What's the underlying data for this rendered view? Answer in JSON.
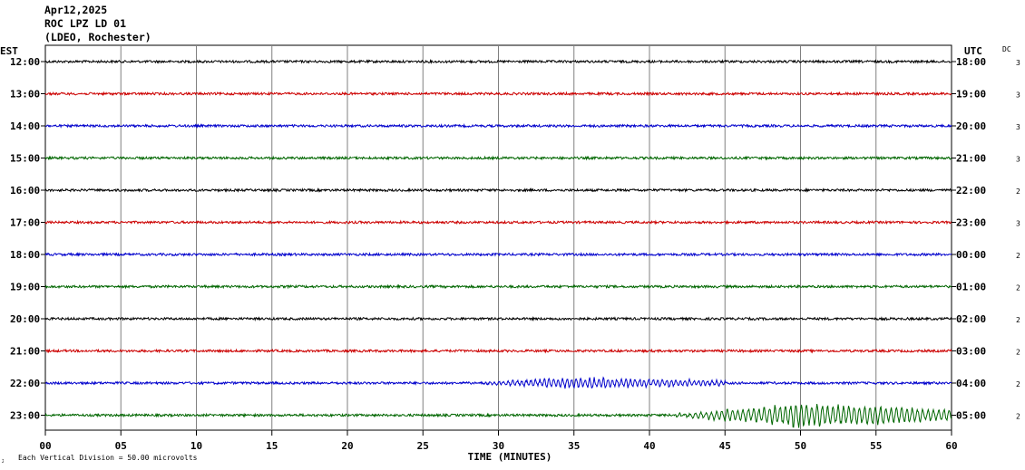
{
  "header": {
    "date": "Apr12,2025",
    "station": "ROC LPZ LD 01",
    "network": "(LDEO, Rochester)"
  },
  "labels": {
    "left_timezone": "EST",
    "right_timezone": "UTC",
    "dc_header": "DC",
    "xlabel": "TIME (MINUTES)",
    "footnote": "Each Vertical Division =   50.00 microvolts",
    "corner_mark": "ג"
  },
  "colors": {
    "grid": "#808080",
    "traces": [
      "#000000",
      "#cc0000",
      "#0000cc",
      "#006600"
    ]
  },
  "chart_data": {
    "type": "line",
    "subtype": "helicorder",
    "x_ticks": [
      "00",
      "05",
      "10",
      "15",
      "20",
      "25",
      "30",
      "35",
      "40",
      "45",
      "50",
      "55",
      "60"
    ],
    "xlim": [
      0,
      60
    ],
    "grid": true,
    "rows": [
      {
        "left": "12:00",
        "right": "18:00",
        "dc": "3",
        "color_index": 0
      },
      {
        "left": "13:00",
        "right": "19:00",
        "dc": "3",
        "color_index": 1
      },
      {
        "left": "14:00",
        "right": "20:00",
        "dc": "3",
        "color_index": 2
      },
      {
        "left": "15:00",
        "right": "21:00",
        "dc": "3",
        "color_index": 3
      },
      {
        "left": "16:00",
        "right": "22:00",
        "dc": "2",
        "color_index": 0
      },
      {
        "left": "17:00",
        "right": "23:00",
        "dc": "3",
        "color_index": 1
      },
      {
        "left": "18:00",
        "right": "00:00",
        "dc": "2",
        "color_index": 2
      },
      {
        "left": "19:00",
        "right": "01:00",
        "dc": "2",
        "color_index": 3
      },
      {
        "left": "20:00",
        "right": "02:00",
        "dc": "2",
        "color_index": 0
      },
      {
        "left": "21:00",
        "right": "03:00",
        "dc": "2",
        "color_index": 1
      },
      {
        "left": "22:00",
        "right": "04:00",
        "dc": "2",
        "color_index": 2
      },
      {
        "left": "23:00",
        "right": "05:00",
        "dc": "2",
        "color_index": 3
      }
    ],
    "events": [
      {
        "row": 10,
        "start_min": 28,
        "peak_min": 35,
        "end_min": 45,
        "strength": 0.45
      },
      {
        "row": 11,
        "start_min": 41,
        "peak_min": 50,
        "end_min": 60,
        "strength": 1.0
      }
    ]
  }
}
